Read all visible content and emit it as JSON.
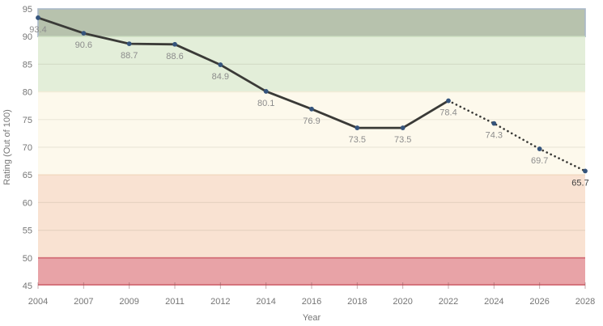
{
  "chart_data": {
    "type": "line",
    "title": "",
    "xlabel": "Year",
    "ylabel": "Rating (Out of 100)",
    "ylim": [
      45,
      95
    ],
    "ytick_step": 5,
    "yticks": [
      45,
      50,
      55,
      60,
      65,
      70,
      75,
      80,
      85,
      90,
      95
    ],
    "categories": [
      "2004",
      "2007",
      "2009",
      "2011",
      "2012",
      "2014",
      "2016",
      "2018",
      "2020",
      "2022",
      "2024",
      "2026",
      "2028"
    ],
    "values": [
      93.4,
      90.6,
      88.7,
      88.6,
      84.9,
      80.1,
      76.9,
      73.5,
      73.5,
      78.4,
      74.3,
      69.7,
      65.7
    ],
    "data_labels": [
      "93.4",
      "90.6",
      "88.7",
      "88.6",
      "84.9",
      "80.1",
      "76.9",
      "73.5",
      "73.5",
      "78.4",
      "74.3",
      "69.7",
      "65.7"
    ],
    "projection_start_index": 9,
    "line_style_solid_range": "2004-2022",
    "line_style_dotted_range": "2022-2028",
    "grid": true,
    "legend_position": "none",
    "colors": {
      "line": "#3a3a37",
      "marker": "#35547c",
      "data_label": "#8c8c8c",
      "last_data_label": "#404040",
      "axis_label": "#757575",
      "gridline": "rgba(90,80,60,0.10)",
      "tick": "rgba(140,85,90,0.50)"
    },
    "bands": [
      {
        "from": 90,
        "to": 95,
        "fill": "#b7c2ad",
        "stroke": "#a9b8c8"
      },
      {
        "from": 80,
        "to": 90,
        "fill": "#e3eed9",
        "stroke": "#cfe2c3"
      },
      {
        "from": 65,
        "to": 80,
        "fill": "#fdf9ec",
        "stroke": "#f2ecd8"
      },
      {
        "from": 50,
        "to": 65,
        "fill": "#f9e2d2",
        "stroke": "#f2d8bf"
      },
      {
        "from": 45,
        "to": 50,
        "fill": "#e8a3a7",
        "stroke": "#d4737b"
      }
    ]
  }
}
